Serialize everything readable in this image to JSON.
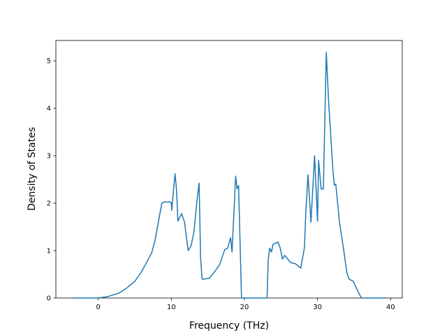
{
  "chart_data": {
    "type": "line",
    "xlabel": "Frequency (THz)",
    "ylabel": "Density of States",
    "x": [
      -3.7,
      0,
      1.3,
      2.8,
      3.8,
      5.0,
      5.9,
      6.5,
      7.3,
      7.75,
      8.1,
      8.7,
      9.1,
      9.5,
      9.8,
      10.0,
      10.05,
      10.5,
      10.7,
      10.9,
      11.4,
      11.8,
      12.3,
      12.7,
      13.1,
      13.5,
      13.8,
      14.0,
      14.2,
      14.6,
      15.2,
      15.9,
      16.6,
      17.3,
      17.7,
      18.1,
      18.3,
      18.8,
      19.0,
      19.2,
      19.6,
      23.1,
      23.25,
      23.45,
      23.7,
      23.9,
      24.6,
      24.9,
      25.2,
      25.5,
      26.3,
      27.0,
      27.7,
      28.2,
      28.4,
      28.7,
      29.1,
      29.6,
      30.0,
      30.15,
      30.5,
      30.8,
      31.2,
      31.5,
      31.9,
      32.1,
      32.3,
      32.5,
      33.0,
      33.5,
      34.0,
      34.3,
      34.9,
      35.5,
      36.0,
      39.4
    ],
    "series": [
      {
        "name": "DOS",
        "color": "#1f77b4",
        "values": [
          0,
          0,
          0.03,
          0.1,
          0.2,
          0.35,
          0.55,
          0.72,
          0.95,
          1.2,
          1.5,
          2.0,
          2.03,
          2.02,
          2.03,
          2.0,
          1.85,
          2.62,
          2.3,
          1.62,
          1.78,
          1.6,
          1.0,
          1.1,
          1.4,
          2.05,
          2.42,
          0.85,
          0.4,
          0.4,
          0.42,
          0.55,
          0.7,
          1.02,
          1.05,
          1.27,
          0.97,
          2.57,
          2.3,
          2.37,
          0,
          0,
          0.8,
          1.05,
          0.97,
          1.13,
          1.18,
          1.05,
          0.82,
          0.9,
          0.75,
          0.72,
          0.63,
          1.05,
          1.8,
          2.6,
          1.6,
          3.0,
          1.62,
          2.9,
          2.3,
          2.3,
          5.18,
          4.2,
          3.2,
          2.7,
          2.38,
          2.4,
          1.6,
          1.1,
          0.55,
          0.4,
          0.35,
          0.15,
          0,
          0
        ]
      }
    ],
    "xlim": [
      -5.8,
      41.6
    ],
    "ylim": [
      0,
      5.43
    ],
    "xticks": [
      0,
      10,
      20,
      30,
      40
    ],
    "yticks": [
      0,
      1,
      2,
      3,
      4,
      5
    ]
  }
}
